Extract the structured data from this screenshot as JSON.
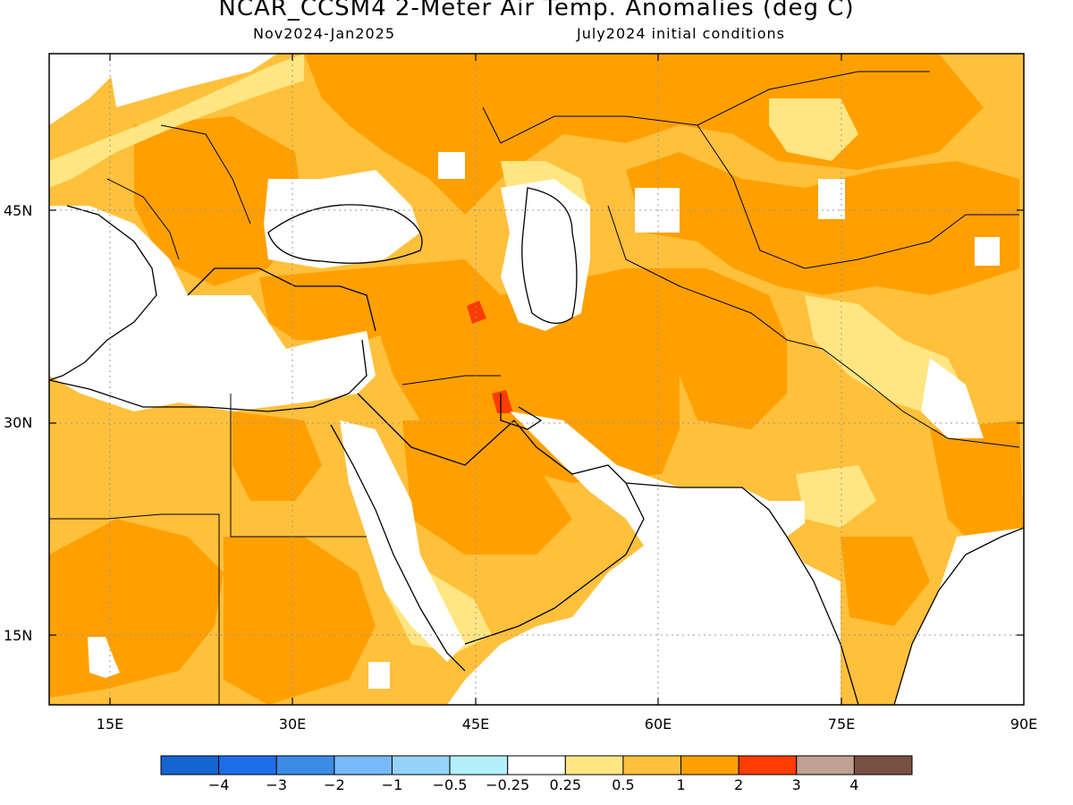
{
  "title": "NCAR_CCSM4 2-Meter Air Temp. Anomalies (deg C)",
  "period": "Nov2024-Jan2025",
  "initial_conditions": "July2024 initial conditions",
  "map": {
    "lat_labels": [
      "45N",
      "30N",
      "15N"
    ],
    "lon_labels": [
      "15E",
      "30E",
      "45E",
      "60E",
      "75E",
      "90E"
    ],
    "grid": "dotted"
  },
  "colorbar": {
    "labels": [
      "-4",
      "-3",
      "-2",
      "-1",
      "-0.5",
      "-0.25",
      "0.25",
      "0.5",
      "1",
      "2",
      "3",
      "4"
    ],
    "colors": [
      "#1464d2",
      "#1e6eeb",
      "#3c8ce6",
      "#78b9fa",
      "#96d2fa",
      "#b4f0fa",
      "#ffffff",
      "#ffe682",
      "#ffc03c",
      "#ffa000",
      "#ff3c00",
      "#c0a090",
      "#785041"
    ]
  },
  "colors": {
    "land_low": "#ffe682",
    "land_mid": "#ffc03c",
    "land_high": "#ffa000",
    "land_extreme": "#ff3c00",
    "water": "#ffffff",
    "coastline": "#000000"
  }
}
